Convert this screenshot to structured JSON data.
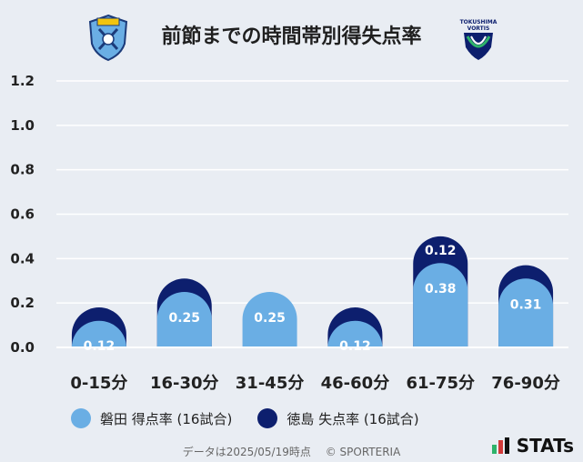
{
  "title": "前節までの時間帯別得失点率",
  "legend": [
    {
      "label": "磐田 得点率 (16試合)",
      "color": "#6aaee4"
    },
    {
      "label": "徳島 失点率 (16試合)",
      "color": "#0d1f6e"
    }
  ],
  "footer": {
    "date": "データは2025/05/19時点",
    "copyright": "© SPORTERIA"
  },
  "brand": "STATs",
  "right_logo_text": {
    "line1": "TOKUSHIMA",
    "line2": "VORTIS"
  },
  "chart_data": {
    "type": "bar",
    "categories": [
      "0-15分",
      "16-30分",
      "31-45分",
      "46-60分",
      "61-75分",
      "76-90分"
    ],
    "series": [
      {
        "name": "磐田 得点率 (16試合)",
        "values": [
          0.12,
          0.25,
          0.25,
          0.12,
          0.38,
          0.31
        ],
        "color": "#6aaee4"
      },
      {
        "name": "徳島 失点率 (16試合)",
        "values": [
          0.06,
          0.06,
          0.0,
          0.06,
          0.12,
          0.06
        ],
        "color": "#0d1f6e",
        "labels": [
          null,
          null,
          null,
          null,
          "0.12",
          null
        ]
      }
    ],
    "bar_labels": [
      "0.12",
      "0.25",
      "0.25",
      "0.12",
      "0.38",
      "0.31"
    ],
    "yticks": [
      "0.0",
      "0.2",
      "0.4",
      "0.6",
      "0.8",
      "1.0",
      "1.2"
    ],
    "ylim": [
      0,
      1.2
    ],
    "grid": true
  }
}
